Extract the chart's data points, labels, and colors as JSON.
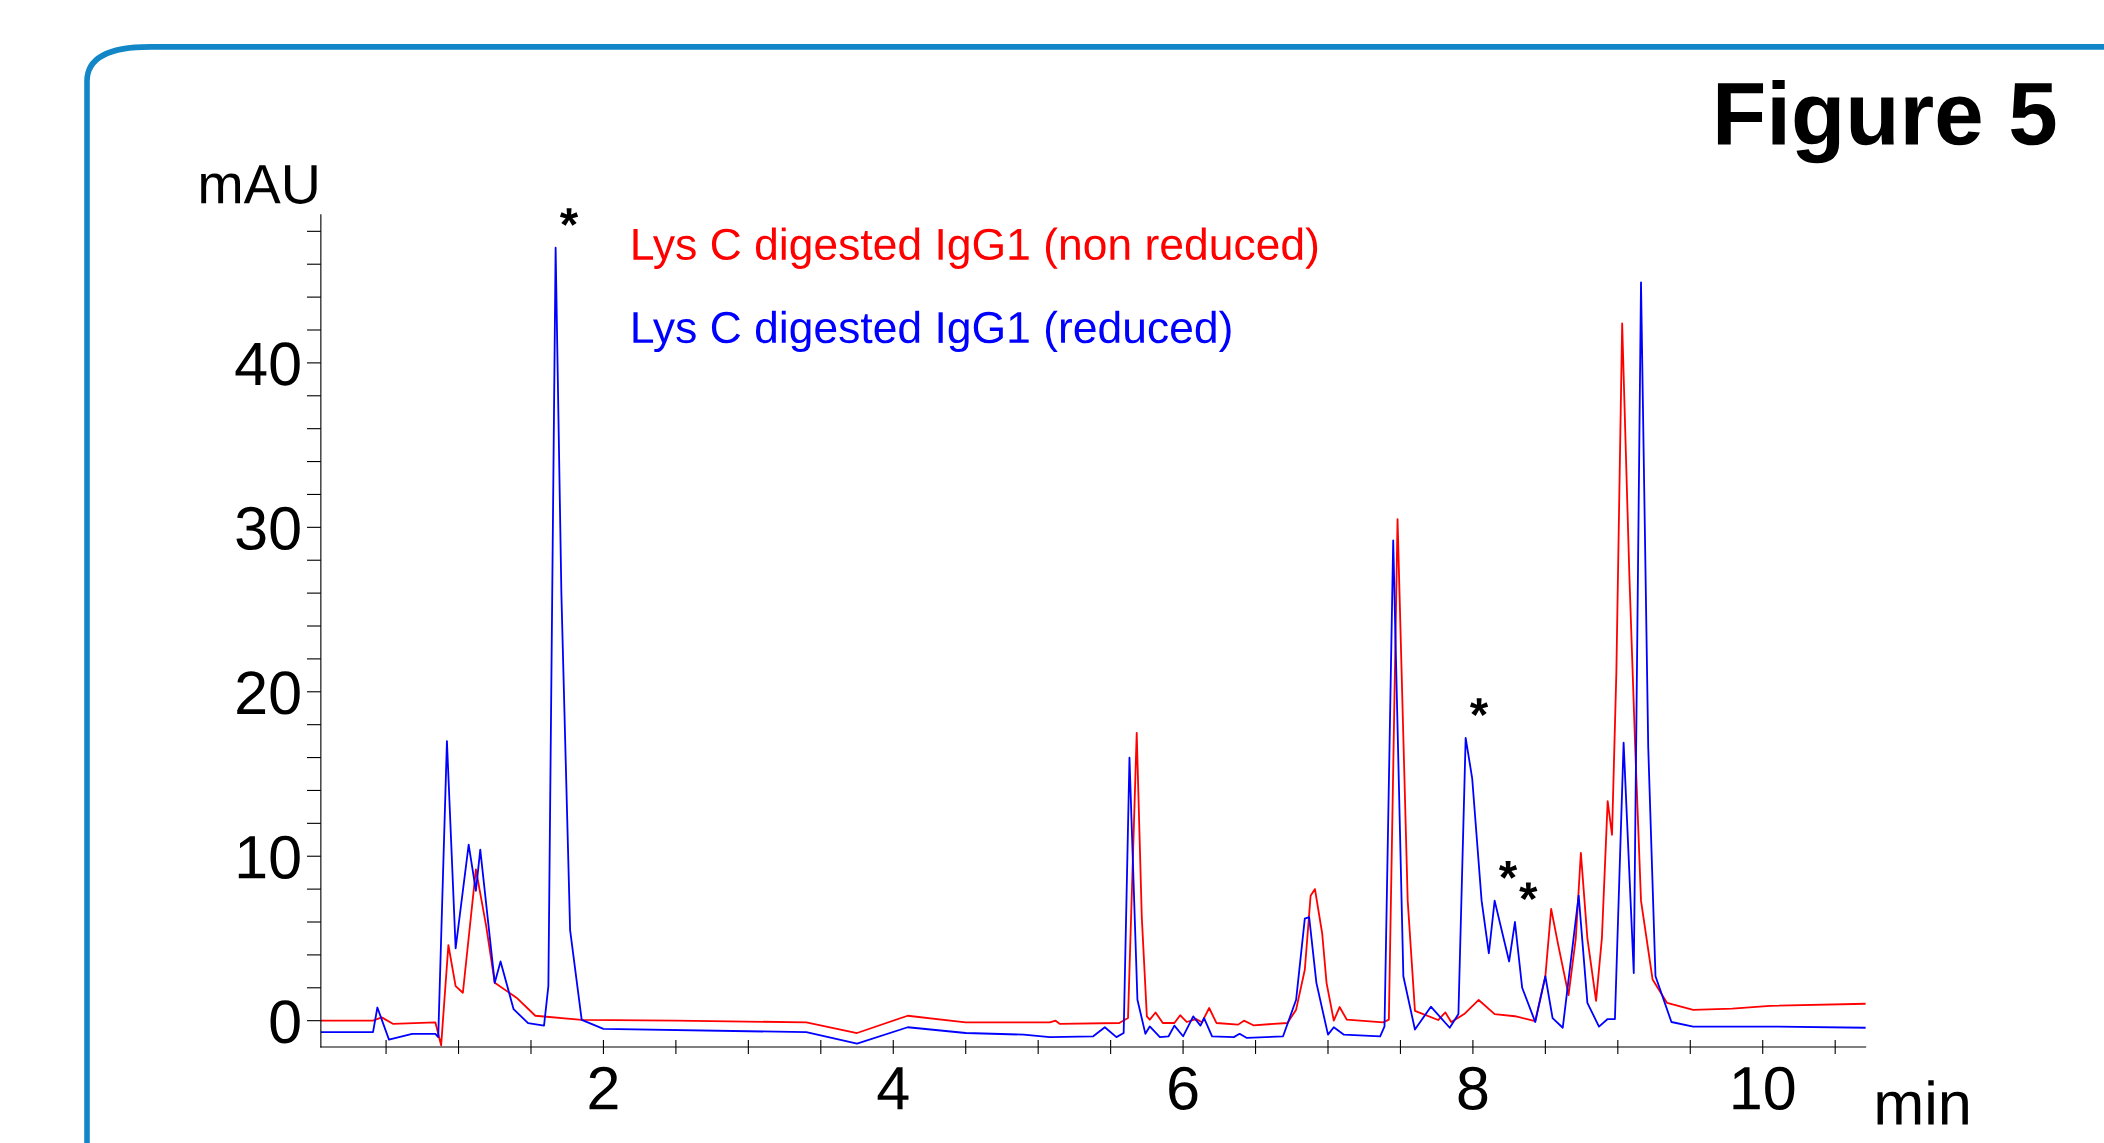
{
  "chart_data": {
    "type": "line",
    "title": "Figure 5",
    "xlabel": "min",
    "ylabel": "mAU",
    "xlim": [
      0.05,
      10.71
    ],
    "ylim": [
      -1.6,
      49
    ],
    "xticks": [
      {
        "value": 0.5,
        "label": null
      },
      {
        "value": 1,
        "label": null
      },
      {
        "value": 1.5,
        "label": null
      },
      2,
      {
        "value": 2.5,
        "label": null
      },
      {
        "value": 3,
        "label": null
      },
      {
        "value": 3.5,
        "label": null
      },
      4,
      {
        "value": 4.5,
        "label": null
      },
      {
        "value": 5,
        "label": null
      },
      {
        "value": 5.5,
        "label": null
      },
      6,
      {
        "value": 6.5,
        "label": null
      },
      {
        "value": 7,
        "label": null
      },
      {
        "value": 7.5,
        "label": null
      },
      8,
      {
        "value": 8.5,
        "label": null
      },
      {
        "value": 9,
        "label": null
      },
      {
        "value": 9.5,
        "label": null
      },
      10,
      {
        "value": 10.5,
        "label": null
      }
    ],
    "yticks": [
      0,
      {
        "value": 2,
        "label": null
      },
      {
        "value": 4,
        "label": null
      },
      {
        "value": 6,
        "label": null
      },
      {
        "value": 8,
        "label": null
      },
      10,
      {
        "value": 12,
        "label": null
      },
      {
        "value": 14,
        "label": null
      },
      {
        "value": 16,
        "label": null
      },
      {
        "value": 18,
        "label": null
      },
      20,
      {
        "value": 22,
        "label": null
      },
      {
        "value": 24,
        "label": null
      },
      {
        "value": 26,
        "label": null
      },
      {
        "value": 28,
        "label": null
      },
      30,
      {
        "value": 32,
        "label": null
      },
      {
        "value": 34,
        "label": null
      },
      {
        "value": 36,
        "label": null
      },
      {
        "value": 38,
        "label": null
      },
      40,
      {
        "value": 42,
        "label": null
      },
      {
        "value": 44,
        "label": null
      },
      {
        "value": 46,
        "label": null
      },
      {
        "value": 48,
        "label": null
      }
    ],
    "grid": false,
    "legend": false,
    "marker": "none",
    "line_style": "solid",
    "series": [
      {
        "name": "Lys C digested IgG1 (non reduced)",
        "color": "#ff0000",
        "x": [
          0.05,
          0.41,
          0.47,
          0.55,
          0.84,
          0.88,
          0.93,
          0.98,
          1.03,
          1.12,
          1.19,
          1.25,
          1.4,
          1.53,
          1.85,
          2.5,
          3.4,
          3.75,
          4.1,
          4.5,
          5.08,
          5.12,
          5.15,
          5.56,
          5.62,
          5.68,
          5.715,
          5.75,
          5.77,
          5.81,
          5.86,
          5.94,
          5.98,
          6.025,
          6.09,
          6.13,
          6.18,
          6.23,
          6.38,
          6.42,
          6.485,
          6.72,
          6.78,
          6.84,
          6.88,
          6.91,
          6.96,
          6.99,
          7.04,
          7.08,
          7.13,
          7.38,
          7.42,
          7.48,
          7.55,
          7.6,
          7.76,
          7.81,
          7.85,
          7.94,
          8.04,
          8.15,
          8.29,
          8.43,
          8.5,
          8.54,
          8.59,
          8.66,
          8.71,
          8.745,
          8.79,
          8.85,
          8.89,
          8.93,
          8.96,
          8.99,
          9.03,
          9.08,
          9.12,
          9.16,
          9.24,
          9.34,
          9.52,
          9.79,
          10.05,
          10.71
        ],
        "values": [
          0.0,
          0.0,
          0.2,
          -0.2,
          -0.1,
          -1.5,
          4.6,
          2.1,
          1.7,
          9.2,
          5.8,
          2.3,
          1.4,
          0.3,
          0.05,
          0.0,
          -0.1,
          -0.75,
          0.3,
          -0.1,
          -0.1,
          0.0,
          -0.2,
          -0.14,
          0.16,
          17.5,
          6.3,
          0.26,
          0.06,
          0.5,
          -0.14,
          -0.14,
          0.33,
          -0.08,
          0.1,
          -0.1,
          0.77,
          -0.14,
          -0.24,
          0.0,
          -0.28,
          -0.14,
          0.67,
          3.1,
          7.6,
          8.0,
          5.3,
          2.3,
          0.0,
          0.83,
          0.06,
          -0.1,
          0.06,
          30.5,
          7.3,
          0.6,
          0.04,
          0.5,
          -0.08,
          0.4,
          1.26,
          0.4,
          0.27,
          -0.03,
          2.7,
          6.8,
          4.55,
          1.55,
          5.0,
          10.2,
          5.0,
          1.2,
          5.0,
          13.35,
          11.3,
          21.2,
          42.4,
          27,
          16.6,
          7.3,
          2.5,
          1.08,
          0.66,
          0.73,
          0.9,
          1.03
        ]
      },
      {
        "name": "Lys C digested IgG1 (reduced)",
        "color": "#0000ff",
        "x": [
          0.05,
          0.41,
          0.44,
          0.52,
          0.68,
          0.84,
          0.86,
          0.92,
          0.98,
          1.07,
          1.12,
          1.15,
          1.25,
          1.29,
          1.38,
          1.48,
          1.59,
          1.62,
          1.67,
          1.71,
          1.77,
          1.85,
          2.0,
          3.4,
          3.75,
          4.1,
          4.5,
          4.9,
          5.08,
          5.38,
          5.46,
          5.54,
          5.59,
          5.63,
          5.685,
          5.74,
          5.77,
          5.84,
          5.9,
          5.94,
          6.0,
          6.07,
          6.12,
          6.145,
          6.2,
          6.35,
          6.39,
          6.44,
          6.69,
          6.78,
          6.84,
          6.87,
          6.92,
          7.0,
          7.04,
          7.11,
          7.36,
          7.39,
          7.45,
          7.52,
          7.6,
          7.71,
          7.84,
          7.9,
          7.95,
          7.995,
          8.06,
          8.11,
          8.15,
          8.25,
          8.29,
          8.34,
          8.43,
          8.5,
          8.55,
          8.62,
          8.73,
          8.79,
          8.87,
          8.93,
          8.98,
          9.04,
          9.11,
          9.16,
          9.21,
          9.26,
          9.37,
          9.52,
          10.05,
          10.71
        ],
        "values": [
          -0.7,
          -0.7,
          0.8,
          -1.15,
          -0.8,
          -0.8,
          -1.0,
          17.0,
          4.4,
          10.7,
          7.9,
          10.4,
          2.3,
          3.6,
          0.7,
          -0.15,
          -0.3,
          2.1,
          47.0,
          25.9,
          5.5,
          0.05,
          -0.5,
          -0.7,
          -1.4,
          -0.4,
          -0.75,
          -0.85,
          -1.0,
          -0.95,
          -0.4,
          -1.0,
          -0.75,
          16.0,
          1.27,
          -0.8,
          -0.35,
          -1.0,
          -0.95,
          -0.3,
          -0.95,
          0.26,
          -0.3,
          0.16,
          -0.95,
          -1.0,
          -0.8,
          -1.05,
          -0.95,
          1.27,
          6.2,
          6.3,
          2.3,
          -0.85,
          -0.4,
          -0.85,
          -0.95,
          -0.35,
          29.2,
          2.7,
          -0.54,
          0.85,
          -0.43,
          0.4,
          17.2,
          14.74,
          7.3,
          4.1,
          7.3,
          3.6,
          6.0,
          2.0,
          -0.08,
          2.7,
          0.15,
          -0.43,
          7.6,
          1.08,
          -0.36,
          0.1,
          0.1,
          16.9,
          2.9,
          44.9,
          16.6,
          2.7,
          -0.08,
          -0.36,
          -0.36,
          -0.43
        ]
      }
    ],
    "annotations": [
      {
        "text": "*",
        "x": 1.67,
        "y": 47.0
      },
      {
        "text": "*",
        "x": 7.95,
        "y": 17.2
      },
      {
        "text": "*",
        "x": 8.15,
        "y": 7.3
      },
      {
        "text": "*",
        "x": 8.29,
        "y": 6.0
      }
    ]
  }
}
